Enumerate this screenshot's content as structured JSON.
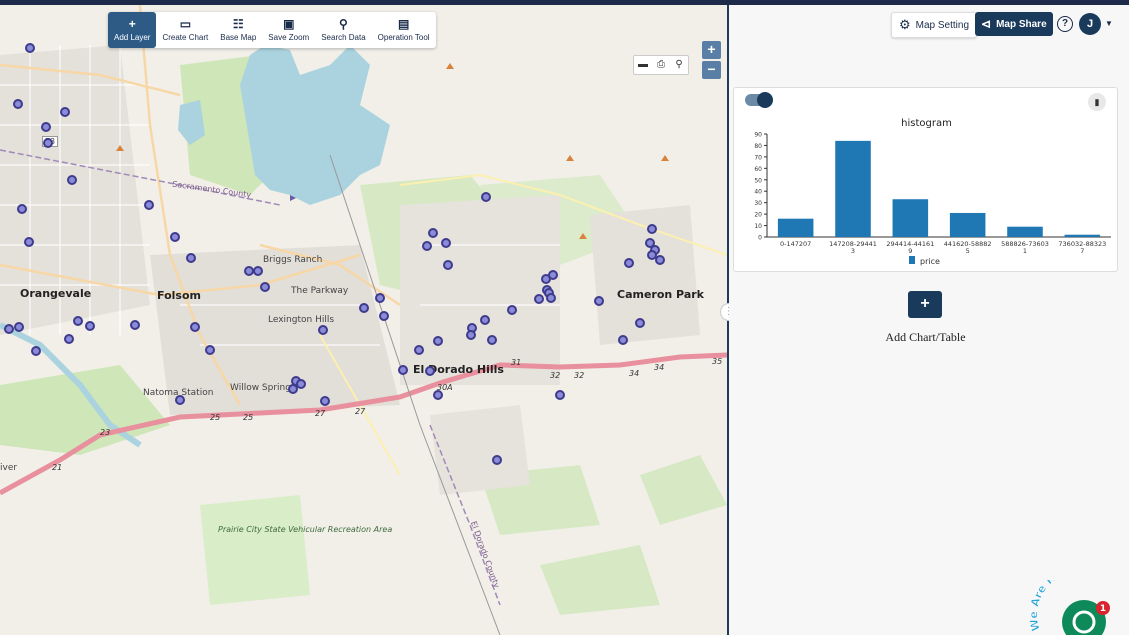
{
  "toolbar": {
    "items": [
      {
        "label": "Add Layer",
        "icon": "plus-icon"
      },
      {
        "label": "Create Chart",
        "icon": "bar-chart-icon"
      },
      {
        "label": "Base Map",
        "icon": "map-icon"
      },
      {
        "label": "Save Zoom",
        "icon": "focus-icon"
      },
      {
        "label": "Search Data",
        "icon": "search-icon"
      },
      {
        "label": "Operation Tool",
        "icon": "chart-box-icon"
      }
    ]
  },
  "map": {
    "labels": {
      "folsom": "Folsom",
      "orangevale": "Orangevale",
      "briggs_ranch": "Briggs Ranch",
      "the_parkway": "The Parkway",
      "lexington_hills": "Lexington Hills",
      "natoma_station": "Natoma Station",
      "willow_springs": "Willow Springs",
      "el_dorado_hills": "El Dorado Hills",
      "cameron_park": "Cameron Park",
      "sacramento_county": "Sacramento County",
      "el_dorado_county": "El Dorado County",
      "prairie_city": "Prairie City State Vehicular Recreation Area",
      "river": "iver",
      "e3": "E3",
      "r50": "50"
    },
    "route_shields": [
      "23",
      "21",
      "25",
      "25",
      "27",
      "27",
      "30A",
      "31",
      "32",
      "32",
      "34",
      "34",
      "35"
    ]
  },
  "header": {
    "map_setting": "Map Setting",
    "map_share": "Map Share",
    "help": "?",
    "avatar_initial": "J"
  },
  "chart_data": {
    "type": "bar",
    "title": "histogram",
    "categories": [
      "0-147207",
      "147208-294413",
      "294414-441619",
      "441620-588825",
      "588826-736031",
      "736032-883237"
    ],
    "category_lines": [
      [
        "0-147207"
      ],
      [
        "147208-29441",
        "3"
      ],
      [
        "294414-44161",
        "9"
      ],
      [
        "441620-58882",
        "5"
      ],
      [
        "588826-73603",
        "1"
      ],
      [
        "736032-88323",
        "7"
      ]
    ],
    "series": [
      {
        "name": "price",
        "values": [
          16,
          84,
          33,
          21,
          9,
          2
        ]
      }
    ],
    "ylim": [
      0,
      90
    ],
    "yticks": [
      0,
      10,
      20,
      30,
      40,
      50,
      60,
      70,
      80,
      90
    ],
    "color": "#1f77b4",
    "legend": "bottom"
  },
  "panel": {
    "add_label": "Add Chart/Table",
    "add_symbol": "+"
  },
  "chat": {
    "badge": "1",
    "text": "We Are Here!"
  }
}
